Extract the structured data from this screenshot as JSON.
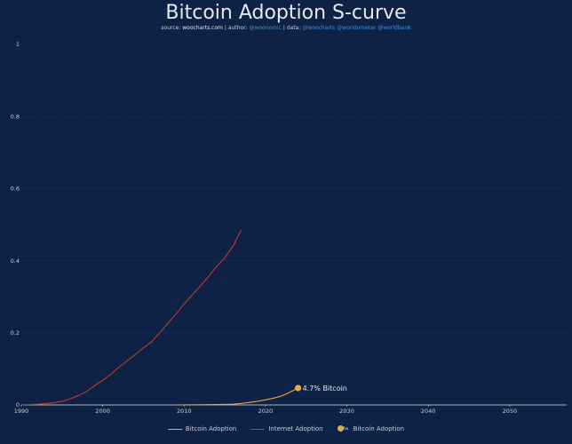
{
  "header": {
    "title": "Bitcoin Adoption S-curve",
    "source_label": "source:",
    "source_site": "woocharts.com",
    "author_label": "| author:",
    "author": "@woonomic",
    "data_label": "| data:",
    "data_sources": "@woocharts @worldometer @worldbank"
  },
  "colors": {
    "background": "#0d2244",
    "bitcoin": "#e8a84c",
    "internet": "#c0392b",
    "grid": "#21406b",
    "axis": "#e8e8e8"
  },
  "chart_data": {
    "type": "line",
    "title": "Bitcoin Adoption S-curve",
    "xlim": [
      1990,
      2057
    ],
    "ylim": [
      0,
      1
    ],
    "x_ticks": [
      1990,
      2000,
      2010,
      2020,
      2030,
      2040,
      2050
    ],
    "y_ticks": [
      0,
      0.2,
      0.4,
      0.6,
      0.8,
      1
    ],
    "y_tick_labels": [
      "0",
      "0.2",
      "0.4",
      "0.6",
      "0.8",
      "1"
    ],
    "grid": true,
    "legend_position": "bottom",
    "series": [
      {
        "name": "Bitcoin Adoption",
        "color": "#e8a84c",
        "x": [
          2009,
          2012,
          2014,
          2016,
          2017,
          2018,
          2019,
          2020,
          2021,
          2022,
          2023,
          2024
        ],
        "y": [
          0,
          0.0005,
          0.001,
          0.002,
          0.004,
          0.007,
          0.01,
          0.014,
          0.019,
          0.025,
          0.035,
          0.047
        ]
      },
      {
        "name": "Internet Adoption",
        "color": "#c0392b",
        "x": [
          1990,
          1992,
          1994,
          1995,
          1996,
          1997,
          1998,
          1999,
          2000,
          2001,
          2002,
          2003,
          2004,
          2005,
          2006,
          2007,
          2008,
          2009,
          2010,
          2011,
          2012,
          2013,
          2014,
          2015,
          2016,
          2017
        ],
        "y": [
          0.0005,
          0.002,
          0.006,
          0.01,
          0.017,
          0.026,
          0.037,
          0.053,
          0.068,
          0.085,
          0.105,
          0.122,
          0.14,
          0.158,
          0.175,
          0.2,
          0.226,
          0.252,
          0.28,
          0.305,
          0.33,
          0.356,
          0.384,
          0.408,
          0.44,
          0.485
        ]
      }
    ],
    "marker": {
      "name": "Bitcoin Adoption",
      "x": 2024,
      "y": 0.047,
      "label": "4.7% Bitcoin",
      "color": "#e8a84c"
    },
    "legend": [
      {
        "label": "Bitcoin Adoption",
        "style": "line",
        "color": "#e8a84c"
      },
      {
        "label": "Internet Adoption",
        "style": "line",
        "color": "#c0392b"
      },
      {
        "label": "Bitcoin Adoption",
        "style": "marker",
        "color": "#e8a84c"
      }
    ]
  }
}
